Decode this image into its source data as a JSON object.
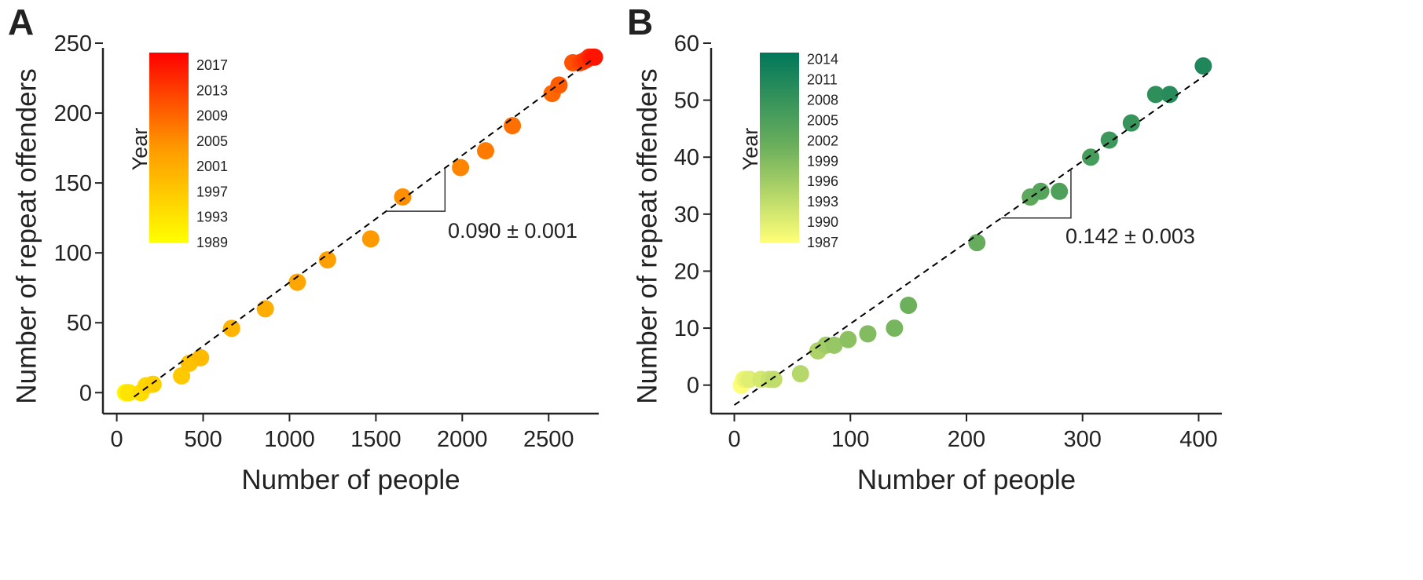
{
  "chart_data": [
    {
      "type": "scatter",
      "panel_label": "A",
      "xlabel": "Number of people",
      "ylabel": "Number of repeat offenders",
      "xlim": [
        -80,
        2790
      ],
      "ylim": [
        -15,
        250
      ],
      "xticks": [
        0,
        500,
        1000,
        1500,
        2000,
        2500
      ],
      "yticks": [
        0,
        50,
        100,
        150,
        200,
        250
      ],
      "grid": false,
      "colorbar": {
        "title": "Year",
        "range": [
          1989,
          2019
        ],
        "ticks": [
          1989,
          1993,
          1997,
          2001,
          2005,
          2009,
          2013,
          2017
        ],
        "color_low": "#ffff00",
        "color_mid": "#ff9900",
        "color_high": "#ff0000",
        "placement": "top-left"
      },
      "fit": {
        "x": [
          100,
          2750
        ],
        "y": [
          -3,
          238
        ],
        "style": "dashed",
        "color": "#000000"
      },
      "slope_annotation": {
        "text": "0.090 ± 0.001"
      },
      "points": [
        {
          "x": 50,
          "y": 0,
          "year": 1989
        },
        {
          "x": 55,
          "y": 0,
          "year": 1990
        },
        {
          "x": 60,
          "y": 0,
          "year": 1991
        },
        {
          "x": 65,
          "y": 0,
          "year": 1992
        },
        {
          "x": 70,
          "y": 0,
          "year": 1993
        },
        {
          "x": 140,
          "y": 0,
          "year": 1994
        },
        {
          "x": 170,
          "y": 5,
          "year": 1995
        },
        {
          "x": 210,
          "y": 6,
          "year": 1996
        },
        {
          "x": 375,
          "y": 12,
          "year": 1997
        },
        {
          "x": 420,
          "y": 21,
          "year": 1998
        },
        {
          "x": 485,
          "y": 25,
          "year": 1999
        },
        {
          "x": 665,
          "y": 46,
          "year": 2000
        },
        {
          "x": 860,
          "y": 60,
          "year": 2001
        },
        {
          "x": 1045,
          "y": 79,
          "year": 2002
        },
        {
          "x": 1220,
          "y": 95,
          "year": 2003
        },
        {
          "x": 1470,
          "y": 110,
          "year": 2004
        },
        {
          "x": 1655,
          "y": 140,
          "year": 2005
        },
        {
          "x": 1990,
          "y": 161,
          "year": 2006
        },
        {
          "x": 2135,
          "y": 173,
          "year": 2007
        },
        {
          "x": 2290,
          "y": 191,
          "year": 2008
        },
        {
          "x": 2520,
          "y": 214,
          "year": 2009
        },
        {
          "x": 2560,
          "y": 220,
          "year": 2010
        },
        {
          "x": 2640,
          "y": 236,
          "year": 2011
        },
        {
          "x": 2680,
          "y": 236,
          "year": 2012
        },
        {
          "x": 2700,
          "y": 237,
          "year": 2013
        },
        {
          "x": 2715,
          "y": 238,
          "year": 2014
        },
        {
          "x": 2735,
          "y": 240,
          "year": 2015
        },
        {
          "x": 2750,
          "y": 240,
          "year": 2016
        },
        {
          "x": 2765,
          "y": 240,
          "year": 2017
        }
      ]
    },
    {
      "type": "scatter",
      "panel_label": "B",
      "xlabel": "Number of people",
      "ylabel": "Number of repeat offenders",
      "xlim": [
        -20,
        420
      ],
      "ylim": [
        -5,
        60
      ],
      "xticks": [
        0,
        100,
        200,
        300,
        400
      ],
      "yticks": [
        0,
        10,
        20,
        30,
        40,
        50,
        60
      ],
      "grid": false,
      "colorbar": {
        "title": "Year",
        "range": [
          1987,
          2015
        ],
        "ticks": [
          1987,
          1990,
          1993,
          1996,
          1999,
          2002,
          2005,
          2008,
          2011,
          2014
        ],
        "color_low": "#ffff77",
        "color_mid": "#6db05c",
        "color_high": "#00775a",
        "placement": "top-left"
      },
      "fit": {
        "x": [
          0,
          410
        ],
        "y": [
          -3.5,
          55
        ],
        "style": "dashed",
        "color": "#000000"
      },
      "slope_annotation": {
        "text": "0.142 ± 0.003"
      },
      "points": [
        {
          "x": 6,
          "y": 0,
          "year": 1987
        },
        {
          "x": 8,
          "y": 1,
          "year": 1988
        },
        {
          "x": 10,
          "y": 1,
          "year": 1989
        },
        {
          "x": 13,
          "y": 1,
          "year": 1990
        },
        {
          "x": 23,
          "y": 1,
          "year": 1991
        },
        {
          "x": 30,
          "y": 1,
          "year": 1992
        },
        {
          "x": 34,
          "y": 1,
          "year": 1993
        },
        {
          "x": 57,
          "y": 2,
          "year": 1994
        },
        {
          "x": 72,
          "y": 6,
          "year": 1995
        },
        {
          "x": 79,
          "y": 7,
          "year": 1996
        },
        {
          "x": 86,
          "y": 7,
          "year": 1997
        },
        {
          "x": 98,
          "y": 8,
          "year": 1998
        },
        {
          "x": 115,
          "y": 9,
          "year": 1999
        },
        {
          "x": 138,
          "y": 10,
          "year": 2000
        },
        {
          "x": 150,
          "y": 14,
          "year": 2001
        },
        {
          "x": 209,
          "y": 25,
          "year": 2002
        },
        {
          "x": 255,
          "y": 33,
          "year": 2003
        },
        {
          "x": 264,
          "y": 34,
          "year": 2004
        },
        {
          "x": 280,
          "y": 34,
          "year": 2005
        },
        {
          "x": 307,
          "y": 40,
          "year": 2006
        },
        {
          "x": 323,
          "y": 43,
          "year": 2007
        },
        {
          "x": 342,
          "y": 46,
          "year": 2008
        },
        {
          "x": 363,
          "y": 51,
          "year": 2009
        },
        {
          "x": 375,
          "y": 51,
          "year": 2010
        },
        {
          "x": 404,
          "y": 56,
          "year": 2011
        }
      ]
    }
  ]
}
